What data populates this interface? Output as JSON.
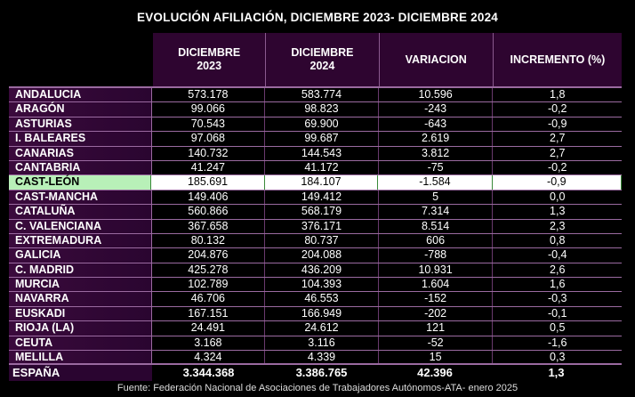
{
  "title": "EVOLUCIÓN AFILIACIÓN, DICIEMBRE 2023- DICIEMBRE 2024",
  "headers": [
    "DICIEMBRE\n2023",
    "DICIEMBRE\n2024",
    "VARIACION",
    "INCREMENTO (%)"
  ],
  "highlight_color": "#b8f0b8",
  "rows": [
    [
      "ANDALUCIA",
      "573.178",
      "583.774",
      "10.596",
      "1,8"
    ],
    [
      "ARAGÓN",
      "99.066",
      "98.823",
      "-243",
      "-0,2"
    ],
    [
      "ASTURIAS",
      "70.543",
      "69.900",
      "-643",
      "-0,9"
    ],
    [
      "I. BALEARES",
      "97.068",
      "99.687",
      "2.619",
      "2,7"
    ],
    [
      "CANARIAS",
      "140.732",
      "144.543",
      "3.812",
      "2,7"
    ],
    [
      "CANTABRIA",
      "41.247",
      "41.172",
      "-75",
      "-0,2"
    ],
    [
      "CAST-LEÓN",
      "185.691",
      "184.107",
      "-1.584",
      "-0,9"
    ],
    [
      "CAST-MANCHA",
      "149.406",
      "149.412",
      "5",
      "0,0"
    ],
    [
      "CATALUÑA",
      "560.866",
      "568.179",
      "7.314",
      "1,3"
    ],
    [
      "C. VALENCIANA",
      "367.658",
      "376.171",
      "8.514",
      "2,3"
    ],
    [
      "EXTREMADURA",
      "80.132",
      "80.737",
      "606",
      "0,8"
    ],
    [
      "GALICIA",
      "204.876",
      "204.088",
      "-788",
      "-0,4"
    ],
    [
      "C. MADRID",
      "425.278",
      "436.209",
      "10.931",
      "2,6"
    ],
    [
      "MURCIA",
      "102.789",
      "104.393",
      "1.604",
      "1,6"
    ],
    [
      "NAVARRA",
      "46.706",
      "46.553",
      "-152",
      "-0,3"
    ],
    [
      "EUSKADI",
      "167.151",
      "166.949",
      "-202",
      "-0,1"
    ],
    [
      "RIOJA (LA)",
      "24.491",
      "24.612",
      "121",
      "0,5"
    ],
    [
      "CEUTA",
      "3.168",
      "3.116",
      "-52",
      "-1,6"
    ],
    [
      "MELILLA",
      "4.324",
      "4.339",
      "15",
      "0,3"
    ]
  ],
  "highlighted_row": "CAST-LEÓN",
  "total": [
    "ESPAÑA",
    "3.344.368",
    "3.386.765",
    "42.396",
    "1,3"
  ],
  "footer": "Fuente: Federación Nacional de Asociaciones de Trabajadores Autónomos-ATA- enero 2025"
}
